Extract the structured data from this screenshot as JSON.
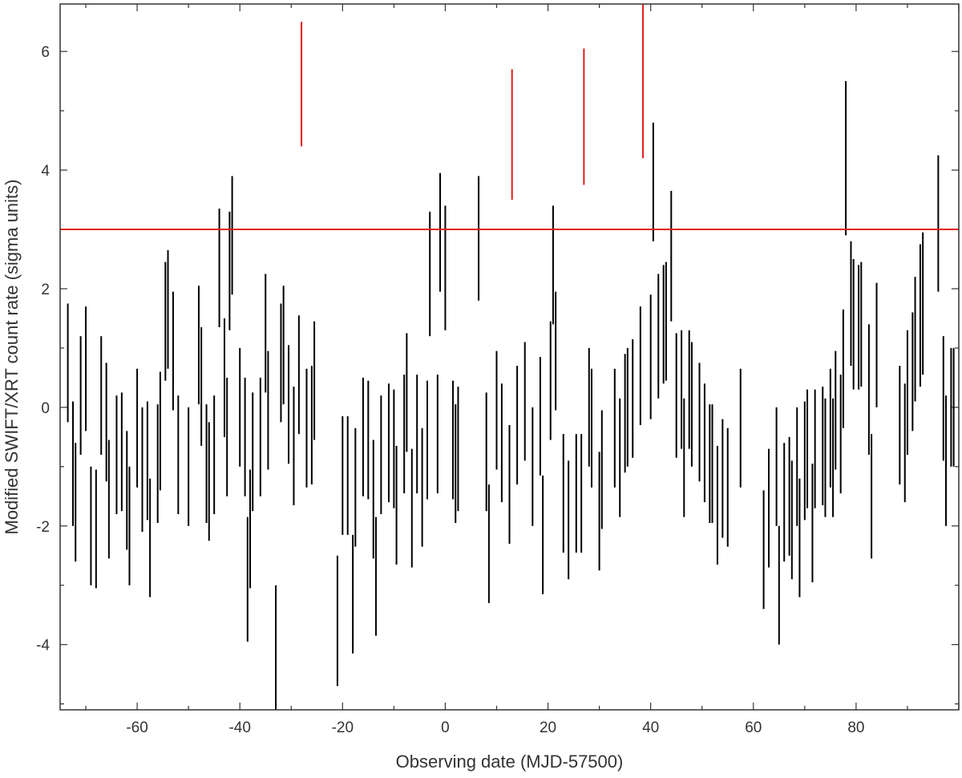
{
  "chart_data": {
    "type": "scatter",
    "title": "",
    "xlabel": "Observing date (MJD-57500)",
    "ylabel": "Modified SWIFT/XRT count rate (sigma units)",
    "xlim": [
      -75,
      100
    ],
    "ylim": [
      -5.1,
      6.8
    ],
    "x_ticks": [
      -60,
      -40,
      -20,
      0,
      20,
      40,
      60,
      80
    ],
    "y_ticks": [
      -4,
      -2,
      0,
      2,
      4,
      6
    ],
    "threshold": {
      "y": 3,
      "color": "#e31a1c"
    },
    "grid": false,
    "legend": "none",
    "colors": {
      "normal": "#000000",
      "highlight": "#e31a1c",
      "axis": "#333333"
    },
    "series": [
      {
        "style": "error-bar",
        "color": "#000000",
        "points": [
          [
            -73.5,
            0.75,
            1.0
          ],
          [
            -72.5,
            -0.95,
            1.05
          ],
          [
            -72.0,
            -1.6,
            1.0
          ],
          [
            -71.0,
            0.2,
            1.0
          ],
          [
            -70.0,
            0.65,
            1.05
          ],
          [
            -69.0,
            -2.0,
            1.0
          ],
          [
            -68.0,
            -2.05,
            1.0
          ],
          [
            -67.0,
            0.2,
            1.0
          ],
          [
            -66.0,
            -0.25,
            1.0
          ],
          [
            -65.5,
            -1.55,
            1.0
          ],
          [
            -64.0,
            -0.8,
            1.0
          ],
          [
            -63.0,
            -0.75,
            1.0
          ],
          [
            -62.0,
            -1.4,
            1.0
          ],
          [
            -61.5,
            -2.0,
            1.0
          ],
          [
            -60.0,
            -0.35,
            1.0
          ],
          [
            -59.0,
            -1.05,
            1.05
          ],
          [
            -58.0,
            -0.9,
            1.0
          ],
          [
            -57.5,
            -2.2,
            1.0
          ],
          [
            -56.0,
            -0.95,
            1.0
          ],
          [
            -55.5,
            -0.4,
            1.0
          ],
          [
            -54.5,
            1.45,
            1.0
          ],
          [
            -54.0,
            1.65,
            1.0
          ],
          [
            -53.0,
            0.95,
            1.0
          ],
          [
            -52.0,
            -0.8,
            1.0
          ],
          [
            -50.0,
            -1.0,
            1.0
          ],
          [
            -48.0,
            1.05,
            1.0
          ],
          [
            -47.5,
            0.35,
            1.0
          ],
          [
            -46.5,
            -0.95,
            1.0
          ],
          [
            -46.0,
            -1.25,
            1.0
          ],
          [
            -45.0,
            -0.8,
            1.0
          ],
          [
            -44.0,
            2.35,
            1.0
          ],
          [
            -43.0,
            0.5,
            1.0
          ],
          [
            -42.5,
            -0.5,
            1.0
          ],
          [
            -42.0,
            2.3,
            1.0
          ],
          [
            -41.5,
            2.9,
            1.0
          ],
          [
            -40.0,
            0.0,
            1.0
          ],
          [
            -39.0,
            -0.5,
            1.0
          ],
          [
            -38.5,
            -2.9,
            1.05
          ],
          [
            -38.0,
            -2.05,
            1.0
          ],
          [
            -37.5,
            -0.75,
            1.0
          ],
          [
            -36.0,
            -0.5,
            1.0
          ],
          [
            -35.0,
            1.25,
            1.0
          ],
          [
            -34.5,
            -0.05,
            1.0
          ],
          [
            -33.0,
            -4.05,
            1.05
          ],
          [
            -32.0,
            0.75,
            1.0
          ],
          [
            -31.5,
            1.05,
            1.0
          ],
          [
            -30.5,
            0.05,
            1.0
          ],
          [
            -29.5,
            -0.65,
            1.0
          ],
          [
            -28.5,
            0.55,
            1.0
          ],
          [
            -27.0,
            -0.35,
            1.0
          ],
          [
            -26.0,
            -0.3,
            1.0
          ],
          [
            -25.5,
            0.45,
            1.0
          ],
          [
            -21.0,
            -3.6,
            1.1
          ],
          [
            -20.0,
            -1.15,
            1.0
          ],
          [
            -19.0,
            -1.15,
            1.0
          ],
          [
            -18.0,
            -3.15,
            1.0
          ],
          [
            -17.5,
            -1.35,
            1.0
          ],
          [
            -16.0,
            -0.5,
            1.0
          ],
          [
            -15.0,
            -0.55,
            1.0
          ],
          [
            -14.0,
            -1.55,
            1.0
          ],
          [
            -13.5,
            -2.85,
            1.0
          ],
          [
            -12.5,
            -0.8,
            1.0
          ],
          [
            -11.0,
            -0.6,
            1.0
          ],
          [
            -10.0,
            -0.7,
            1.0
          ],
          [
            -9.5,
            -1.65,
            1.0
          ],
          [
            -8.0,
            -0.45,
            1.0
          ],
          [
            -7.5,
            0.25,
            1.0
          ],
          [
            -6.5,
            -1.7,
            1.0
          ],
          [
            -5.5,
            -0.45,
            1.0
          ],
          [
            -4.5,
            -1.35,
            1.0
          ],
          [
            -3.5,
            -0.55,
            1.0
          ],
          [
            -3.0,
            2.25,
            1.05
          ],
          [
            -1.5,
            -0.45,
            1.0
          ],
          [
            -1.0,
            2.95,
            1.0
          ],
          [
            0.0,
            2.35,
            1.05
          ],
          [
            1.5,
            -0.55,
            1.0
          ],
          [
            2.0,
            -0.95,
            1.0
          ],
          [
            2.5,
            -0.7,
            1.05
          ],
          [
            6.5,
            2.85,
            1.05
          ],
          [
            8.0,
            -0.75,
            1.0
          ],
          [
            8.5,
            -2.3,
            1.0
          ],
          [
            10.0,
            -0.05,
            1.0
          ],
          [
            11.0,
            -0.6,
            1.0
          ],
          [
            12.5,
            -1.3,
            1.0
          ],
          [
            14.0,
            -0.3,
            1.0
          ],
          [
            15.5,
            0.1,
            1.0
          ],
          [
            17.0,
            -1.0,
            1.0
          ],
          [
            18.5,
            -0.15,
            1.0
          ],
          [
            19.0,
            -2.15,
            1.0
          ],
          [
            20.5,
            0.45,
            1.0
          ],
          [
            21.0,
            2.4,
            1.0
          ],
          [
            21.5,
            0.95,
            1.0
          ],
          [
            23.0,
            -1.45,
            1.0
          ],
          [
            24.0,
            -1.9,
            1.0
          ],
          [
            25.5,
            -1.45,
            1.0
          ],
          [
            26.5,
            -1.45,
            1.0
          ],
          [
            28.0,
            0.0,
            1.0
          ],
          [
            28.5,
            -0.35,
            1.0
          ],
          [
            30.0,
            -1.75,
            1.0
          ],
          [
            30.5,
            -1.05,
            1.0
          ],
          [
            33.0,
            -0.35,
            1.0
          ],
          [
            34.0,
            -0.85,
            1.0
          ],
          [
            35.0,
            -0.1,
            1.0
          ],
          [
            35.5,
            0.0,
            1.0
          ],
          [
            36.5,
            0.15,
            1.0
          ],
          [
            38.0,
            0.7,
            1.0
          ],
          [
            40.0,
            0.85,
            1.05
          ],
          [
            40.5,
            3.8,
            1.0
          ],
          [
            41.5,
            1.2,
            1.05
          ],
          [
            42.5,
            1.4,
            1.0
          ],
          [
            43.0,
            1.45,
            1.0
          ],
          [
            44.0,
            2.55,
            1.1
          ],
          [
            45.0,
            0.2,
            1.05
          ],
          [
            46.0,
            0.3,
            1.0
          ],
          [
            46.5,
            -0.85,
            1.0
          ],
          [
            47.5,
            0.3,
            1.0
          ],
          [
            48.0,
            0.05,
            1.05
          ],
          [
            49.5,
            -0.25,
            1.0
          ],
          [
            50.5,
            -0.6,
            1.0
          ],
          [
            51.5,
            -0.95,
            1.0
          ],
          [
            52.0,
            -0.95,
            1.0
          ],
          [
            53.0,
            -1.65,
            1.0
          ],
          [
            54.0,
            -1.2,
            1.0
          ],
          [
            55.0,
            -1.35,
            1.0
          ],
          [
            57.5,
            -0.35,
            1.0
          ],
          [
            62.0,
            -2.4,
            1.0
          ],
          [
            63.0,
            -1.7,
            1.0
          ],
          [
            64.5,
            -1.0,
            1.0
          ],
          [
            65.0,
            -3.0,
            1.0
          ],
          [
            66.0,
            -1.6,
            1.0
          ],
          [
            67.0,
            -1.5,
            1.0
          ],
          [
            67.5,
            -1.9,
            1.0
          ],
          [
            68.5,
            -1.0,
            1.0
          ],
          [
            69.0,
            -2.2,
            1.0
          ],
          [
            70.0,
            -0.9,
            1.0
          ],
          [
            70.5,
            -0.7,
            1.0
          ],
          [
            71.5,
            -1.95,
            1.0
          ],
          [
            72.0,
            -0.7,
            1.0
          ],
          [
            73.5,
            -0.65,
            1.0
          ],
          [
            74.0,
            -0.85,
            1.0
          ],
          [
            75.0,
            -0.35,
            1.0
          ],
          [
            75.5,
            -0.85,
            1.0
          ],
          [
            76.0,
            -0.05,
            1.0
          ],
          [
            77.0,
            -0.45,
            1.0
          ],
          [
            77.5,
            0.65,
            1.0
          ],
          [
            78.0,
            4.2,
            1.3
          ],
          [
            79.0,
            1.75,
            1.05
          ],
          [
            79.5,
            1.4,
            1.1
          ],
          [
            80.5,
            1.35,
            1.05
          ],
          [
            81.0,
            1.4,
            1.05
          ],
          [
            82.5,
            0.3,
            1.1
          ],
          [
            83.0,
            -1.5,
            1.05
          ],
          [
            84.0,
            1.05,
            1.05
          ],
          [
            88.5,
            -0.3,
            1.0
          ],
          [
            89.5,
            -0.6,
            1.0
          ],
          [
            90.0,
            0.25,
            1.05
          ],
          [
            91.0,
            0.6,
            1.0
          ],
          [
            91.5,
            1.15,
            1.05
          ],
          [
            92.5,
            1.55,
            1.2
          ],
          [
            93.0,
            1.75,
            1.2
          ],
          [
            96.0,
            3.1,
            1.15
          ],
          [
            97.0,
            0.15,
            1.05
          ],
          [
            97.5,
            -0.9,
            1.1
          ],
          [
            98.5,
            0.0,
            1.0
          ],
          [
            99.0,
            0.0,
            1.0
          ]
        ]
      },
      {
        "style": "error-bar",
        "color": "#e31a1c",
        "points": [
          [
            -28.0,
            5.45,
            1.05
          ],
          [
            13.0,
            4.6,
            1.1
          ],
          [
            27.0,
            4.9,
            1.15
          ],
          [
            38.5,
            5.5,
            1.3
          ]
        ]
      }
    ]
  }
}
